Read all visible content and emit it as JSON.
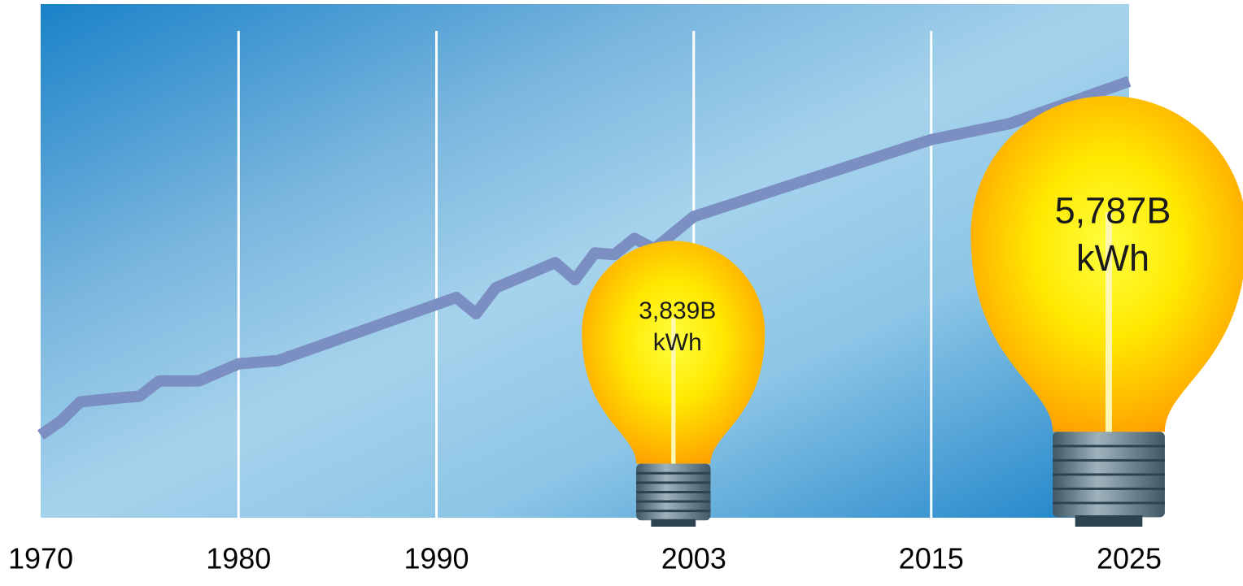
{
  "chart_data": {
    "type": "line",
    "x": [
      1970,
      1971,
      1972,
      1974,
      1975,
      1976,
      1978,
      1980,
      1982,
      1991,
      1992,
      1993,
      1996,
      1997,
      1998,
      1999,
      2000,
      2001,
      2003,
      2015,
      2019,
      2025
    ],
    "series": [
      {
        "color": "#7b8fc2",
        "values": [
          691,
          889,
          1169,
          1227,
          1250,
          1472,
          1472,
          1717,
          1764,
          2673,
          2440,
          2813,
          3174,
          2930,
          3314,
          3291,
          3524,
          3373,
          3839,
          4947,
          5180,
          5787
        ]
      }
    ],
    "xlim": [
      1970,
      2025
    ],
    "xticks": [
      1970,
      1980,
      1990,
      2003,
      2015,
      2025
    ],
    "ylim": [
      -500,
      6900
    ],
    "grid": true,
    "annotations": [
      {
        "x": 2003,
        "y": 3839,
        "lines": [
          "3,839B",
          "kWh"
        ]
      },
      {
        "x": 2025,
        "y": 5787,
        "lines": [
          "5,787B",
          "kWh"
        ]
      }
    ]
  }
}
